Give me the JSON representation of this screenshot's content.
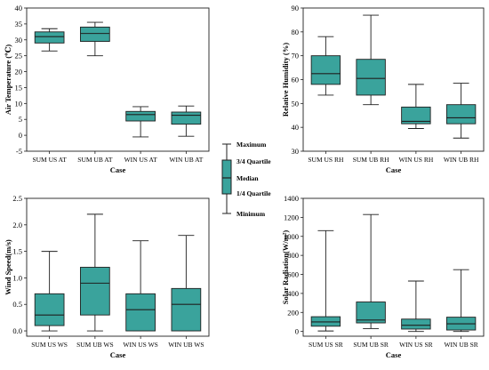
{
  "colors": {
    "box_fill": "#3aa39c",
    "stroke": "#1f1f1f"
  },
  "legend": {
    "labels": [
      "Maximum",
      "3/4 Quartile",
      "Median",
      "1/4 Quartile",
      "Minimum"
    ]
  },
  "chart_data": [
    {
      "type": "box",
      "xlabel": "Case",
      "ylabel": "Air Temperature (℃)",
      "ylim": [
        -5,
        40
      ],
      "yticks": [
        -5,
        0,
        5,
        10,
        15,
        20,
        25,
        30,
        35,
        40
      ],
      "categories": [
        "SUM US AT",
        "SUM UB AT",
        "WIN US AT",
        "WIN UB AT"
      ],
      "boxes": [
        {
          "min": 26.5,
          "q1": 29.0,
          "median": 31.0,
          "q3": 32.5,
          "max": 33.5
        },
        {
          "min": 25.0,
          "q1": 29.5,
          "median": 32.0,
          "q3": 34.0,
          "max": 35.5
        },
        {
          "min": -0.5,
          "q1": 4.5,
          "median": 6.5,
          "q3": 7.5,
          "max": 9.0
        },
        {
          "min": -0.3,
          "q1": 3.5,
          "median": 6.3,
          "q3": 7.3,
          "max": 9.2
        }
      ]
    },
    {
      "type": "box",
      "xlabel": "Case",
      "ylabel": "Relative Humidity (%)",
      "ylim": [
        30,
        90
      ],
      "yticks": [
        30,
        40,
        50,
        60,
        70,
        80,
        90
      ],
      "categories": [
        "SUM US RH",
        "SUM UB RH",
        "WIN US RH",
        "WIN UB RH"
      ],
      "boxes": [
        {
          "min": 53.5,
          "q1": 58.0,
          "median": 62.5,
          "q3": 70.0,
          "max": 78.0
        },
        {
          "min": 49.5,
          "q1": 53.5,
          "median": 60.5,
          "q3": 68.5,
          "max": 87.0
        },
        {
          "min": 39.5,
          "q1": 41.5,
          "median": 42.5,
          "q3": 48.5,
          "max": 58.0
        },
        {
          "min": 35.5,
          "q1": 41.5,
          "median": 44.0,
          "q3": 49.5,
          "max": 58.5
        }
      ]
    },
    {
      "type": "box",
      "xlabel": "Case",
      "ylabel": "Wind Speed(m/s)",
      "ylim": [
        -0.1,
        2.5
      ],
      "yticks": [
        0.0,
        0.5,
        1.0,
        1.5,
        2.0,
        2.5
      ],
      "tick_decimals": 1,
      "categories": [
        "SUM US WS",
        "SUM UB WS",
        "WIN US WS",
        "WIN UB WS"
      ],
      "boxes": [
        {
          "min": 0.0,
          "q1": 0.1,
          "median": 0.3,
          "q3": 0.7,
          "max": 1.5
        },
        {
          "min": 0.0,
          "q1": 0.3,
          "median": 0.9,
          "q3": 1.2,
          "max": 2.2
        },
        {
          "min": 0.0,
          "q1": 0.0,
          "median": 0.4,
          "q3": 0.7,
          "max": 1.7
        },
        {
          "min": 0.0,
          "q1": 0.0,
          "median": 0.5,
          "q3": 0.8,
          "max": 1.8
        }
      ]
    },
    {
      "type": "box",
      "xlabel": "Case",
      "ylabel": "Solar Radiation(W/m²)",
      "ylim": [
        -50,
        1400
      ],
      "yticks": [
        0,
        200,
        400,
        600,
        800,
        1000,
        1200,
        1400
      ],
      "categories": [
        "SUM US SR",
        "SUM UB SR",
        "WIN US SR",
        "WIN UB SR"
      ],
      "boxes": [
        {
          "min": 5,
          "q1": 55,
          "median": 100,
          "q3": 155,
          "max": 1060
        },
        {
          "min": 30,
          "q1": 90,
          "median": 120,
          "q3": 310,
          "max": 1230
        },
        {
          "min": 0,
          "q1": 25,
          "median": 65,
          "q3": 130,
          "max": 530
        },
        {
          "min": 0,
          "q1": 15,
          "median": 80,
          "q3": 150,
          "max": 650
        }
      ]
    }
  ]
}
